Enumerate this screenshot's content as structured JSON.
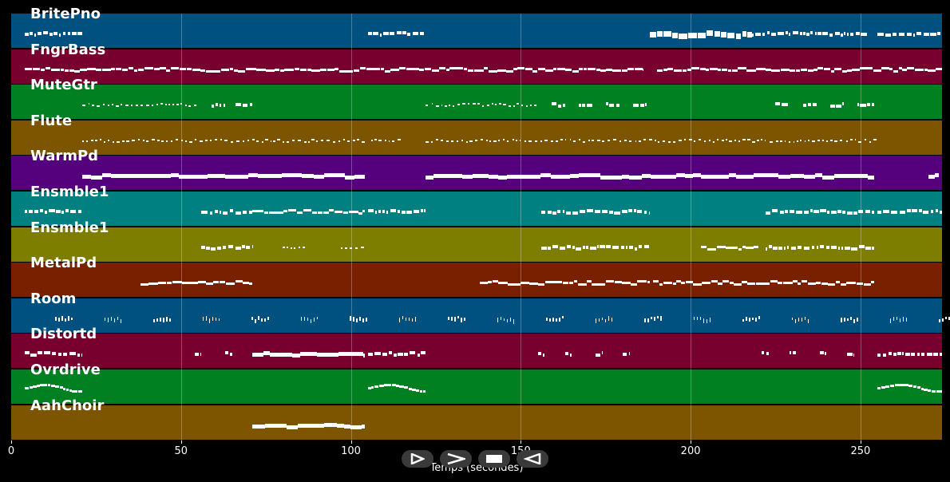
{
  "tracks": [
    {
      "name": "BritePno",
      "color": "#005080"
    },
    {
      "name": "FngrBass",
      "color": "#78002e"
    },
    {
      "name": "MuteGtr",
      "color": "#008020"
    },
    {
      "name": "Flute",
      "color": "#7d5500"
    },
    {
      "name": "WarmPd",
      "color": "#55007d"
    },
    {
      "name": "Ensmble1",
      "color": "#008080"
    },
    {
      "name": "Ensmble1",
      "color": "#7d7d00"
    },
    {
      "name": "MetalPd",
      "color": "#782000"
    },
    {
      "name": "Room",
      "color": "#005080"
    },
    {
      "name": "Distortd",
      "color": "#78002e"
    },
    {
      "name": "Ovrdrive",
      "color": "#008020"
    },
    {
      "name": "AahChoir",
      "color": "#7d5500"
    }
  ],
  "x_axis": {
    "label": "Temps (secondes)",
    "ticks": [
      {
        "value": 0,
        "label": "0"
      },
      {
        "value": 50,
        "label": "50"
      },
      {
        "value": 100,
        "label": "100"
      },
      {
        "value": 150,
        "label": "150"
      },
      {
        "value": 200,
        "label": "200"
      },
      {
        "value": 250,
        "label": "250"
      }
    ],
    "max": 274
  },
  "controls": [
    {
      "name": "play-button",
      "icon": "play-outline-icon"
    },
    {
      "name": "fast-forward-button",
      "icon": "chevron-right-icon"
    },
    {
      "name": "stop-button",
      "icon": "stop-icon"
    },
    {
      "name": "rewind-button",
      "icon": "rewind-icon"
    }
  ],
  "notes": [
    {
      "track": 0,
      "segments": [
        [
          4,
          21,
          "dense"
        ],
        [
          105,
          122,
          "dense"
        ],
        [
          188,
          218,
          "block"
        ],
        [
          218,
          252,
          "dense"
        ],
        [
          255,
          274,
          "dense"
        ]
      ]
    },
    {
      "track": 1,
      "segments": [
        [
          4,
          186,
          "line"
        ],
        [
          190,
          274,
          "line"
        ]
      ]
    },
    {
      "track": 2,
      "segments": [
        [
          21,
          54,
          "dots"
        ],
        [
          59,
          63,
          "dense"
        ],
        [
          66,
          71,
          "dense"
        ],
        [
          122,
          154,
          "dots"
        ],
        [
          159,
          163,
          "dense"
        ],
        [
          167,
          171,
          "dense"
        ],
        [
          175,
          179,
          "dense"
        ],
        [
          183,
          187,
          "dense"
        ],
        [
          225,
          229,
          "dense"
        ],
        [
          233,
          237,
          "dense"
        ],
        [
          241,
          245,
          "dense"
        ],
        [
          249,
          254,
          "dense"
        ]
      ]
    },
    {
      "track": 3,
      "segments": [
        [
          21,
          104,
          "dots"
        ],
        [
          106,
          114,
          "dots"
        ],
        [
          122,
          254,
          "dots"
        ]
      ]
    },
    {
      "track": 4,
      "segments": [
        [
          21,
          104,
          "thick"
        ],
        [
          122,
          254,
          "thick"
        ],
        [
          270,
          273,
          "thick"
        ]
      ]
    },
    {
      "track": 5,
      "segments": [
        [
          4,
          21,
          "dense"
        ],
        [
          56,
          71,
          "dense"
        ],
        [
          71,
          104,
          "line"
        ],
        [
          105,
          122,
          "dense"
        ],
        [
          156,
          188,
          "dense"
        ],
        [
          222,
          254,
          "dense"
        ],
        [
          255,
          274,
          "dense"
        ]
      ]
    },
    {
      "track": 6,
      "segments": [
        [
          56,
          71,
          "dense"
        ],
        [
          80,
          86,
          "dots"
        ],
        [
          97,
          103,
          "dots"
        ],
        [
          156,
          188,
          "dense"
        ],
        [
          203,
          220,
          "line"
        ],
        [
          222,
          254,
          "dense"
        ]
      ]
    },
    {
      "track": 7,
      "segments": [
        [
          38,
          71,
          "line"
        ],
        [
          138,
          188,
          "line"
        ],
        [
          189,
          221,
          "line"
        ],
        [
          221,
          254,
          "line"
        ]
      ]
    },
    {
      "track": 8,
      "segments": [
        [
          13,
          274,
          "ticks"
        ]
      ]
    },
    {
      "track": 9,
      "segments": [
        [
          4,
          21,
          "dense"
        ],
        [
          54,
          56,
          "dense"
        ],
        [
          63,
          65,
          "dense"
        ],
        [
          71,
          104,
          "thick"
        ],
        [
          105,
          122,
          "dense"
        ],
        [
          155,
          157,
          "dense"
        ],
        [
          163,
          165,
          "dense"
        ],
        [
          172,
          174,
          "dense"
        ],
        [
          180,
          182,
          "dense"
        ],
        [
          221,
          223,
          "dense"
        ],
        [
          229,
          231,
          "dense"
        ],
        [
          238,
          240,
          "dense"
        ],
        [
          246,
          248,
          "dense"
        ],
        [
          255,
          274,
          "dense"
        ]
      ]
    },
    {
      "track": 10,
      "segments": [
        [
          4,
          21,
          "wave"
        ],
        [
          105,
          122,
          "wave"
        ],
        [
          255,
          274,
          "wave"
        ]
      ]
    },
    {
      "track": 11,
      "segments": [
        [
          71,
          104,
          "thick"
        ]
      ]
    }
  ]
}
